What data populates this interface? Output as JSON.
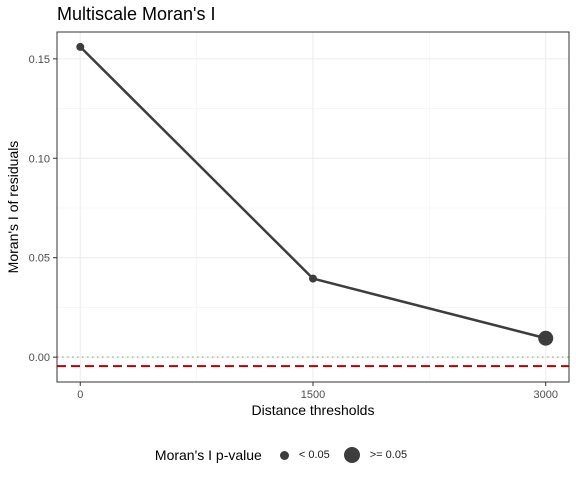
{
  "chart_data": {
    "type": "line",
    "title": "Multiscale Moran's I",
    "xlabel": "Distance thresholds",
    "ylabel": "Moran's I of residuals",
    "x": [
      0,
      1500,
      3000
    ],
    "series": [
      {
        "values": [
          0.156,
          0.0395,
          0.0095
        ],
        "p_value_class": [
          "< 0.05",
          "< 0.05",
          ">= 0.05"
        ]
      }
    ],
    "x_ticks": [
      0,
      1500,
      3000
    ],
    "x_tick_labels": [
      "0",
      "1500",
      "3000"
    ],
    "y_ticks": [
      0,
      0.05,
      0.1,
      0.15
    ],
    "y_tick_labels": [
      "0.00",
      "0.05",
      "0.10",
      "0.15"
    ],
    "xlim": [
      -150,
      3150
    ],
    "ylim": [
      -0.0125,
      0.1635
    ],
    "reference_lines": [
      {
        "y": 0,
        "style": "dotted",
        "color": "#7fbf7f"
      },
      {
        "y": -0.0045,
        "style": "dashed",
        "color": "#b30000"
      }
    ],
    "grid": true,
    "legend": {
      "title": "Moran's I p-value",
      "placement": "bottom",
      "items": [
        {
          "label": "< 0.05",
          "size": "small"
        },
        {
          "label": ">= 0.05",
          "size": "large"
        }
      ]
    },
    "colors": {
      "line": "#3d3d3d",
      "panel_border": "#333333",
      "grid": "#ebebeb"
    }
  }
}
